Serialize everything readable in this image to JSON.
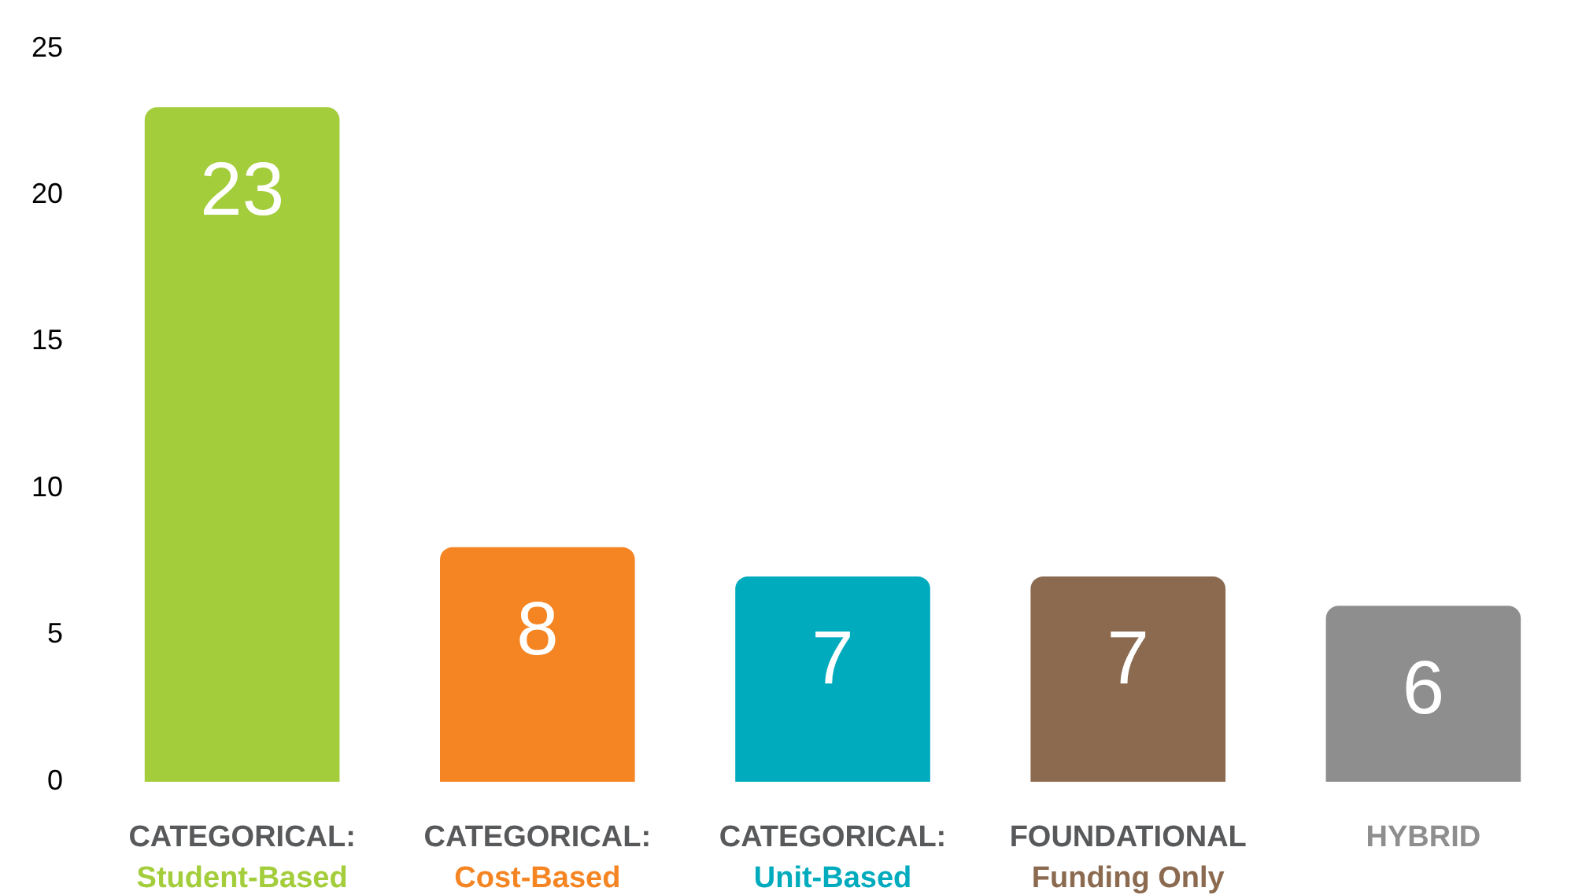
{
  "chart_data": {
    "type": "bar",
    "categories": [
      "CATEGORICAL:\nStudent-Based",
      "CATEGORICAL:\nCost-Based",
      "CATEGORICAL:\nUnit-Based",
      "FOUNDATIONAL\nFunding Only",
      "HYBRID"
    ],
    "values": [
      23,
      8,
      7,
      7,
      6
    ],
    "colors": [
      "#a3cd3b",
      "#f58523",
      "#00abbd",
      "#8b6a4f",
      "#8f8e8f"
    ],
    "ylim": [
      0,
      25
    ],
    "yticks": [
      0,
      5,
      10,
      15,
      20,
      25
    ],
    "grid": false,
    "legend": false,
    "data_labels": true
  }
}
